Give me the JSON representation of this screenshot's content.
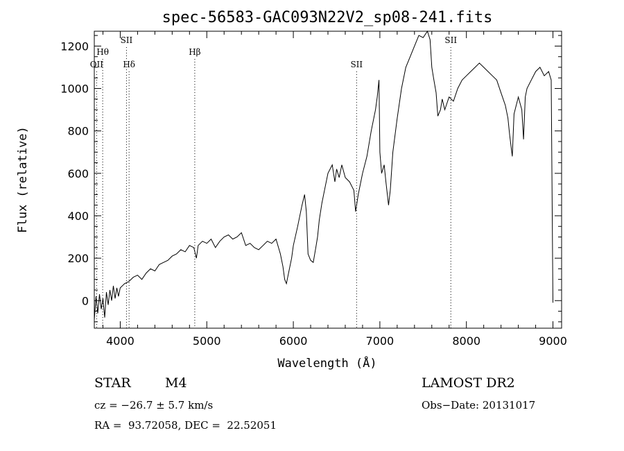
{
  "chart_data": {
    "type": "line",
    "title": "spec-56583-GAC093N22V2_sp08-241.fits",
    "xlabel": "Wavelength (Å)",
    "ylabel": "Flux (relative)",
    "xlim": [
      3700,
      9100
    ],
    "ylim": [
      -130,
      1270
    ],
    "x_ticks": [
      4000,
      5000,
      6000,
      7000,
      8000,
      9000
    ],
    "y_ticks": [
      0,
      200,
      400,
      600,
      800,
      1000,
      1200
    ],
    "grid": false,
    "legend": "none",
    "line_color": "#000000",
    "series": [
      {
        "x": [
          3700,
          3720,
          3740,
          3760,
          3780,
          3800,
          3820,
          3840,
          3860,
          3880,
          3900,
          3920,
          3940,
          3960,
          3980,
          4000,
          4050,
          4100,
          4150,
          4200,
          4250,
          4300,
          4350,
          4400,
          4450,
          4500,
          4550,
          4600,
          4650,
          4700,
          4750,
          4800,
          4850,
          4880,
          4900,
          4950,
          5000,
          5050,
          5100,
          5150,
          5200,
          5250,
          5300,
          5350,
          5400,
          5450,
          5500,
          5550,
          5600,
          5650,
          5700,
          5750,
          5800,
          5850,
          5880,
          5900,
          5920,
          5950,
          5980,
          6000,
          6050,
          6100,
          6130,
          6150,
          6170,
          6200,
          6230,
          6260,
          6280,
          6300,
          6330,
          6360,
          6400,
          6450,
          6480,
          6500,
          6530,
          6560,
          6600,
          6650,
          6700,
          6720,
          6750,
          6800,
          6850,
          6900,
          6950,
          6970,
          6990,
          7000,
          7020,
          7050,
          7070,
          7100,
          7120,
          7150,
          7200,
          7250,
          7300,
          7350,
          7400,
          7450,
          7500,
          7550,
          7580,
          7600,
          7620,
          7650,
          7670,
          7700,
          7720,
          7750,
          7800,
          7850,
          7900,
          7950,
          8000,
          8050,
          8100,
          8150,
          8200,
          8250,
          8300,
          8350,
          8400,
          8450,
          8480,
          8500,
          8530,
          8550,
          8600,
          8640,
          8660,
          8680,
          8700,
          8750,
          8800,
          8850,
          8900,
          8950,
          8980,
          9000
        ],
        "y": [
          -90,
          20,
          -60,
          30,
          -40,
          10,
          -80,
          40,
          -20,
          50,
          0,
          70,
          10,
          60,
          20,
          60,
          80,
          90,
          110,
          120,
          100,
          130,
          150,
          140,
          170,
          180,
          190,
          210,
          220,
          240,
          230,
          260,
          250,
          200,
          260,
          280,
          270,
          290,
          250,
          280,
          300,
          310,
          290,
          300,
          320,
          260,
          270,
          250,
          240,
          260,
          280,
          270,
          290,
          220,
          160,
          100,
          80,
          140,
          200,
          260,
          350,
          450,
          500,
          420,
          220,
          190,
          180,
          250,
          300,
          380,
          460,
          520,
          600,
          640,
          560,
          620,
          580,
          640,
          580,
          560,
          520,
          420,
          500,
          600,
          680,
          800,
          900,
          960,
          1040,
          700,
          600,
          640,
          560,
          450,
          520,
          700,
          860,
          1000,
          1100,
          1150,
          1200,
          1250,
          1240,
          1270,
          1230,
          1100,
          1050,
          980,
          870,
          900,
          950,
          900,
          960,
          940,
          1000,
          1040,
          1060,
          1080,
          1100,
          1120,
          1100,
          1080,
          1060,
          1040,
          980,
          920,
          860,
          780,
          680,
          880,
          960,
          900,
          760,
          960,
          1000,
          1040,
          1080,
          1100,
          1060,
          1080,
          1040,
          -10
        ]
      }
    ],
    "lines": [
      {
        "label": "OII",
        "x": 3727,
        "label_level": 2
      },
      {
        "label": "Hθ",
        "x": 3797,
        "label_level": 1
      },
      {
        "label": "SII",
        "x": 4072,
        "label_level": 0
      },
      {
        "label": "Hδ",
        "x": 4102,
        "label_level": 2
      },
      {
        "label": "Hβ",
        "x": 4861,
        "label_level": 1
      },
      {
        "label": "SII",
        "x": 6731,
        "label_level": 2
      },
      {
        "label": "SII",
        "x": 7820,
        "label_level": 0
      }
    ]
  },
  "info": {
    "class": "STAR",
    "subclass": "M4",
    "survey": "LAMOST DR2",
    "cz": "cz = −26.7 ± 5.7 km/s",
    "obs_date": "Obs−Date: 20131017",
    "coords": "RA =  93.72058, DEC =  22.52051"
  }
}
